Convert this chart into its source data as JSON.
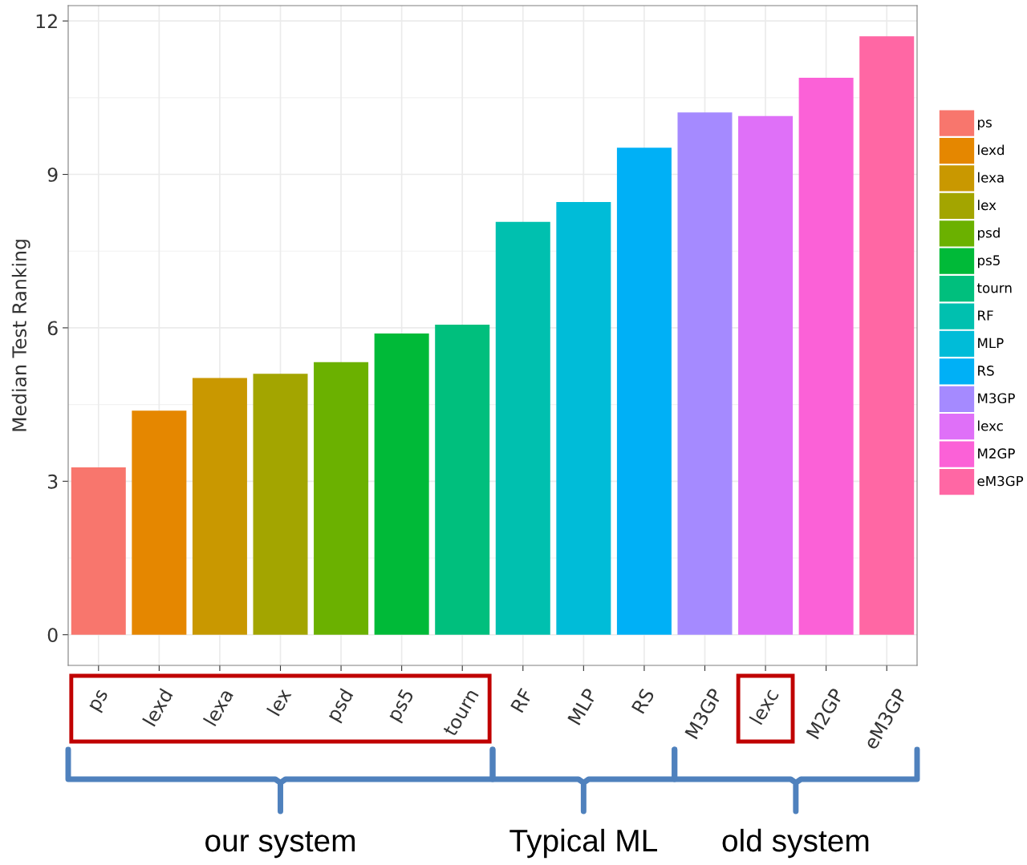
{
  "chart_data": {
    "type": "bar",
    "ylabel": "Median Test Ranking",
    "categories": [
      "ps",
      "lexd",
      "lexa",
      "lex",
      "psd",
      "ps5",
      "tourn",
      "RF",
      "MLP",
      "RS",
      "M3GP",
      "lexc",
      "M2GP",
      "eM3GP"
    ],
    "series": [
      {
        "name": "ps",
        "color": "#f8766d",
        "values": [
          3.27,
          null,
          null,
          null,
          null,
          null,
          null,
          null,
          null,
          null,
          null,
          null,
          null,
          null
        ]
      },
      {
        "name": "lexd",
        "color": "#e58700",
        "values": [
          null,
          4.38,
          null,
          null,
          null,
          null,
          null,
          null,
          null,
          null,
          null,
          null,
          null,
          null
        ]
      },
      {
        "name": "lexa",
        "color": "#c99800",
        "values": [
          null,
          null,
          5.02,
          null,
          null,
          null,
          null,
          null,
          null,
          null,
          null,
          null,
          null,
          null
        ]
      },
      {
        "name": "lex",
        "color": "#a3a500",
        "values": [
          null,
          null,
          null,
          5.1,
          null,
          null,
          null,
          null,
          null,
          null,
          null,
          null,
          null,
          null
        ]
      },
      {
        "name": "psd",
        "color": "#6bb100",
        "values": [
          null,
          null,
          null,
          null,
          5.33,
          null,
          null,
          null,
          null,
          null,
          null,
          null,
          null,
          null
        ]
      },
      {
        "name": "ps5",
        "color": "#00ba38",
        "values": [
          null,
          null,
          null,
          null,
          null,
          5.89,
          null,
          null,
          null,
          null,
          null,
          null,
          null,
          null
        ]
      },
      {
        "name": "tourn",
        "color": "#00bf7d",
        "values": [
          null,
          null,
          null,
          null,
          null,
          null,
          6.06,
          null,
          null,
          null,
          null,
          null,
          null,
          null
        ]
      },
      {
        "name": "RF",
        "color": "#00c0af",
        "values": [
          null,
          null,
          null,
          null,
          null,
          null,
          null,
          8.07,
          null,
          null,
          null,
          null,
          null,
          null
        ]
      },
      {
        "name": "MLP",
        "color": "#00bcd8",
        "values": [
          null,
          null,
          null,
          null,
          null,
          null,
          null,
          null,
          8.46,
          null,
          null,
          null,
          null,
          null
        ]
      },
      {
        "name": "RS",
        "color": "#00b0f6",
        "values": [
          null,
          null,
          null,
          null,
          null,
          null,
          null,
          null,
          null,
          9.52,
          null,
          null,
          null,
          null
        ]
      },
      {
        "name": "M3GP",
        "color": "#a58aff",
        "values": [
          null,
          null,
          null,
          null,
          null,
          null,
          null,
          null,
          null,
          null,
          10.21,
          null,
          null,
          null
        ]
      },
      {
        "name": "lexc",
        "color": "#df70f8",
        "values": [
          null,
          null,
          null,
          null,
          null,
          null,
          null,
          null,
          null,
          null,
          null,
          10.14,
          null,
          null
        ]
      },
      {
        "name": "M2GP",
        "color": "#fb61d7",
        "values": [
          null,
          null,
          null,
          null,
          null,
          null,
          null,
          null,
          null,
          null,
          null,
          null,
          10.89,
          null
        ]
      },
      {
        "name": "eM3GP",
        "color": "#ff67a4",
        "values": [
          null,
          null,
          null,
          null,
          null,
          null,
          null,
          null,
          null,
          null,
          null,
          null,
          null,
          11.7
        ]
      }
    ],
    "ylim": [
      -0.6,
      12.3
    ],
    "yticks": [
      0,
      3,
      6,
      9,
      12
    ],
    "grid": true,
    "legend": "right",
    "annotations": [
      "our system",
      "Typical ML",
      "old system"
    ]
  }
}
